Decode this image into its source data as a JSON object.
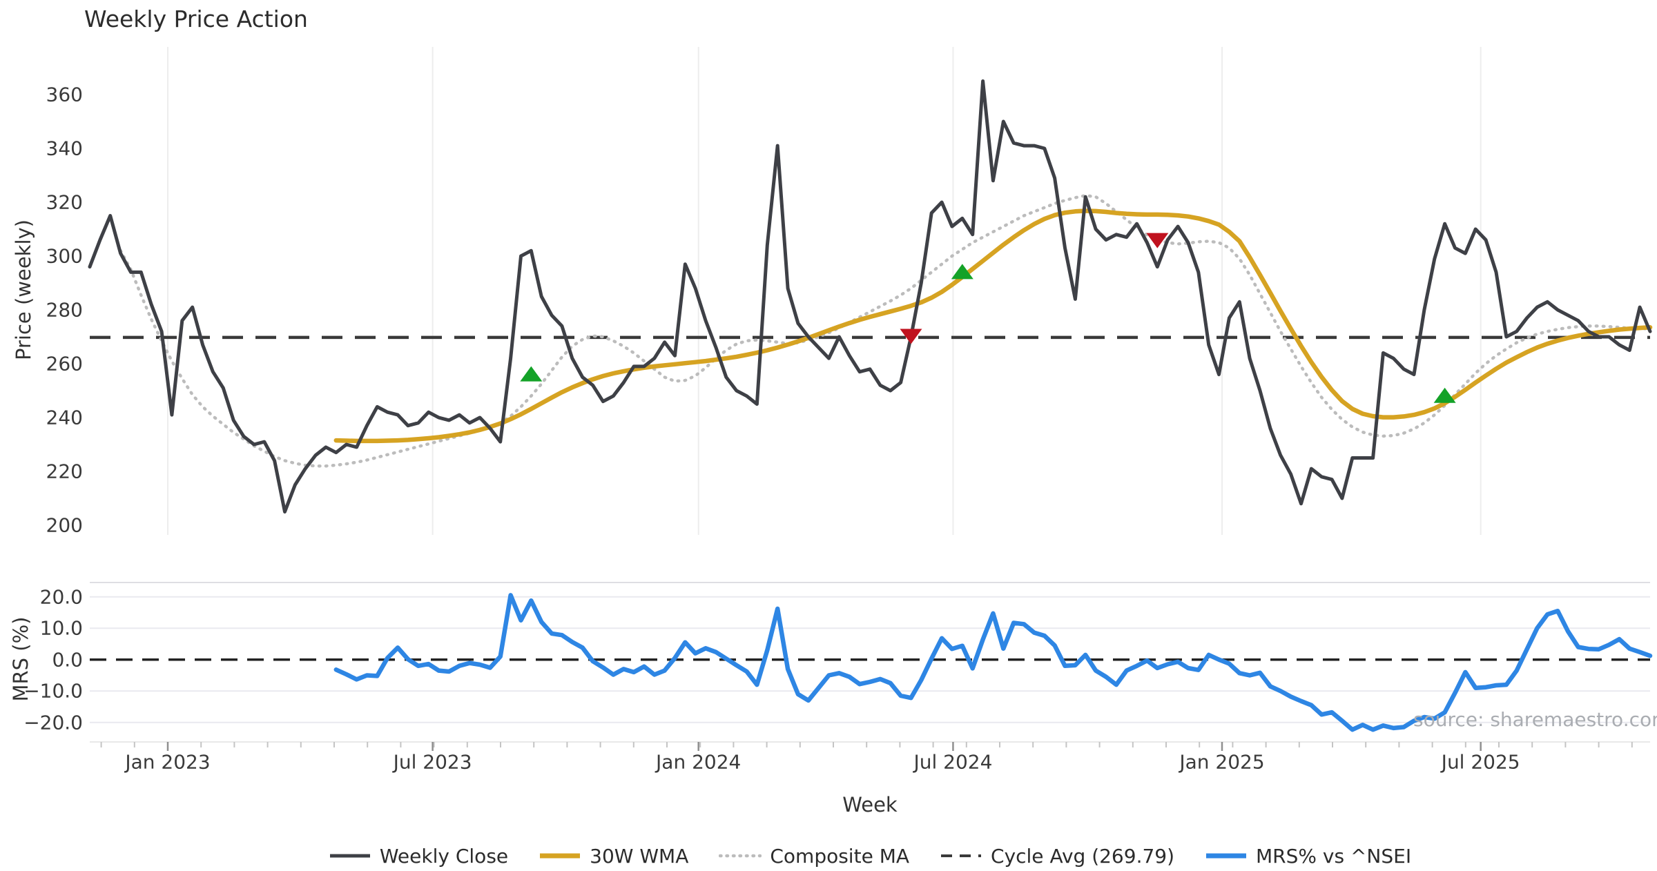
{
  "title": "Weekly Price Action",
  "source_note": "source: sharemaestro.com",
  "colors": {
    "weekly_close": "#3e4046",
    "wma_30w": "#d6a322",
    "composite_ma": "#bcbcbc",
    "cycle_avg": "#3a3a3a",
    "mrs": "#2e86e4",
    "buy_marker": "#14a228",
    "sell_marker": "#c0121f",
    "grid": "#ededed",
    "grid_h": "#e9e9ef"
  },
  "legend": [
    {
      "label": "Weekly Close",
      "style": "solid",
      "color": "#3e4046",
      "width": 5
    },
    {
      "label": "30W WMA",
      "style": "solid",
      "color": "#d6a322",
      "width": 7
    },
    {
      "label": "Composite MA",
      "style": "dotted",
      "color": "#bcbcbc",
      "width": 4.5
    },
    {
      "label": "Cycle Avg (269.79)",
      "style": "dashed",
      "color": "#3a3a3a",
      "width": 4
    },
    {
      "label": "MRS% vs ^NSEI",
      "style": "solid",
      "color": "#2e86e4",
      "width": 7
    }
  ],
  "chart_data": [
    {
      "type": "line",
      "title": "Weekly Price Action",
      "ylabel": "Price (weekly)",
      "ylim": [
        196,
        378
      ],
      "yticks": [
        360,
        340,
        320,
        300,
        280,
        260,
        240,
        220,
        200
      ],
      "x_unit": "week_index",
      "total_weeks": 152,
      "xticks": [
        {
          "label": "Jan 2023",
          "week": 7.6
        },
        {
          "label": "Jul 2023",
          "week": 33.4
        },
        {
          "label": "Jan 2024",
          "week": 59.3
        },
        {
          "label": "Jul 2024",
          "week": 84.1
        },
        {
          "label": "Jan 2025",
          "week": 110.3
        },
        {
          "label": "Jul 2025",
          "week": 135.5
        }
      ],
      "cycle_avg": 269.79,
      "grid": "vertical",
      "series": [
        {
          "name": "Weekly Close",
          "start_week": 0,
          "values": [
            296,
            306,
            315,
            301,
            294,
            294,
            282,
            272,
            241,
            276,
            281,
            267,
            257,
            251,
            239,
            233,
            230,
            231,
            224,
            205,
            215,
            221,
            226,
            229,
            227,
            230,
            229,
            237,
            244,
            242,
            241,
            237,
            238,
            242,
            240,
            239,
            241,
            238,
            240,
            236,
            231,
            262,
            300,
            302,
            285,
            278,
            274,
            262,
            255,
            252,
            246,
            248,
            253,
            259,
            259,
            262,
            268,
            263,
            297,
            288,
            276,
            266,
            255,
            250,
            248,
            245,
            304,
            341,
            288,
            275,
            270,
            266,
            262,
            270,
            263,
            257,
            258,
            252,
            250,
            253,
            270,
            290,
            316,
            320,
            311,
            314,
            308,
            365,
            328,
            350,
            342,
            341,
            341,
            340,
            329,
            303,
            284,
            322,
            310,
            306,
            308,
            307,
            312,
            305,
            296,
            306,
            311,
            305,
            294,
            267,
            256,
            277,
            283,
            262,
            250,
            236,
            226,
            219,
            208,
            221,
            218,
            217,
            210,
            225,
            225,
            225,
            264,
            262,
            258,
            256,
            280,
            299,
            312,
            303,
            301,
            310,
            306,
            294,
            270,
            272,
            277,
            281,
            283,
            280,
            278,
            276,
            272,
            270,
            270,
            267,
            265,
            281,
            272
          ]
        },
        {
          "name": "30W WMA",
          "start_week": 24,
          "values": [
            231.5,
            231.4,
            231.3,
            231.3,
            231.3,
            231.4,
            231.5,
            231.7,
            232,
            232.3,
            232.7,
            233.2,
            233.8,
            234.5,
            235.4,
            236.5,
            237.8,
            239.4,
            241.2,
            243.2,
            245.3,
            247.4,
            249.4,
            251.2,
            252.8,
            254.2,
            255.4,
            256.4,
            257.2,
            257.9,
            258.5,
            259,
            259.4,
            259.8,
            260.2,
            260.6,
            261,
            261.5,
            262,
            262.6,
            263.3,
            264.1,
            265,
            266,
            267.1,
            268.3,
            269.6,
            271,
            272.4,
            273.8,
            275.1,
            276.3,
            277.4,
            278.4,
            279.4,
            280.4,
            281.5,
            282.8,
            284.5,
            286.7,
            289.3,
            292.2,
            295.2,
            298.2,
            301.2,
            304.2,
            307,
            309.6,
            311.9,
            313.8,
            315.2,
            316.1,
            316.6,
            316.8,
            316.7,
            316.4,
            316,
            315.7,
            315.5,
            315.4,
            315.4,
            315.3,
            315.1,
            314.7,
            314,
            313,
            311.7,
            309,
            305.5,
            299.5,
            293,
            286.3,
            279.6,
            273,
            266.6,
            260.6,
            255.1,
            250.2,
            246.1,
            243.2,
            241.4,
            240.5,
            240.1,
            240.1,
            240.4,
            241,
            242,
            243.4,
            245.3,
            247.7,
            250.3,
            253,
            255.6,
            258.1,
            260.4,
            262.4,
            264.3,
            266,
            267.4,
            268.6,
            269.6,
            270.4,
            271.1,
            271.7,
            272.2,
            272.7,
            273,
            273.3,
            273.5
          ]
        },
        {
          "name": "Composite MA",
          "start_week": 3,
          "values": [
            302,
            295,
            285.5,
            276.5,
            268.5,
            261,
            254.5,
            248.5,
            244,
            240.5,
            237.5,
            234.5,
            232,
            229.5,
            227.5,
            225.5,
            224,
            223,
            222.3,
            222,
            222,
            222.3,
            222.8,
            223.4,
            224.2,
            225.2,
            226.2,
            227.2,
            228.2,
            229.2,
            230.2,
            231.2,
            232.2,
            233.2,
            234.2,
            235.2,
            236.4,
            238,
            240.5,
            244,
            248,
            252.5,
            257.5,
            262.5,
            266.5,
            269,
            270.3,
            270,
            268.5,
            266.5,
            264,
            261,
            258,
            255,
            253.5,
            253.8,
            255.5,
            258.5,
            262,
            265,
            267.3,
            268.5,
            268.8,
            268.5,
            268,
            267.5,
            267.8,
            268.8,
            270,
            271.5,
            273.3,
            275.3,
            277.3,
            279.3,
            281.3,
            283.3,
            285.5,
            288,
            291,
            294,
            297,
            300,
            302.5,
            305,
            307,
            309,
            311,
            313,
            315,
            316.5,
            318,
            319.5,
            320.7,
            321.7,
            322.5,
            322,
            319.5,
            316.5,
            313.5,
            310.5,
            307.8,
            306,
            305,
            304.5,
            304.8,
            305.3,
            305.5,
            305,
            303,
            299,
            293,
            286,
            279,
            272,
            265.5,
            259,
            253,
            247.5,
            243,
            239.3,
            236.5,
            234.6,
            233.5,
            233.1,
            233.3,
            234.2,
            235.8,
            238,
            241,
            244.5,
            248.5,
            252.5,
            256.5,
            260,
            263,
            265.5,
            267.8,
            269.6,
            271,
            272,
            272.8,
            273.4,
            273.8,
            274,
            274,
            273.8,
            273.5,
            273.2,
            273,
            273
          ]
        }
      ],
      "markers": {
        "buy": [
          {
            "week": 43,
            "value": 256
          },
          {
            "week": 85,
            "value": 294
          },
          {
            "week": 132,
            "value": 248
          }
        ],
        "sell": [
          {
            "week": 80,
            "value": 270.4
          },
          {
            "week": 104,
            "value": 306
          }
        ]
      }
    },
    {
      "type": "line",
      "ylabel": "MRS (%)",
      "xlabel": "Week",
      "ylim": [
        -26,
        23.5
      ],
      "yticks": [
        {
          "value": 20,
          "label": "20.0"
        },
        {
          "value": 10,
          "label": "10.0"
        },
        {
          "value": 0,
          "label": "0.0"
        },
        {
          "value": -10,
          "label": "−10.0"
        },
        {
          "value": -20,
          "label": "−20.0"
        }
      ],
      "zero_line": 0,
      "grid": "horizontal",
      "series": [
        {
          "name": "MRS% vs ^NSEI",
          "start_week": 24,
          "values": [
            -3.2,
            -4.7,
            -6.3,
            -5,
            -5.2,
            0.5,
            3.8,
            0.1,
            -2,
            -1.4,
            -3.5,
            -3.8,
            -2,
            -1.1,
            -1.6,
            -2.6,
            1,
            20.5,
            12.5,
            18.8,
            12,
            8.3,
            7.8,
            5.6,
            3.8,
            -0.5,
            -2.5,
            -4.8,
            -3,
            -4,
            -2.2,
            -4.8,
            -3.5,
            0.5,
            5.5,
            2,
            3.6,
            2.4,
            0.3,
            -1.8,
            -3.8,
            -8,
            3,
            16.2,
            -3,
            -11,
            -13,
            -9,
            -5,
            -4.3,
            -5.5,
            -7.8,
            -7.1,
            -6.2,
            -7.5,
            -11.5,
            -12.2,
            -6.5,
            0.3,
            6.8,
            3.4,
            4.4,
            -2.8,
            6.4,
            14.7,
            3.5,
            11.7,
            11.3,
            8.6,
            7.6,
            4.5,
            -2,
            -1.8,
            1.5,
            -3.5,
            -5.5,
            -8,
            -3.5,
            -2,
            -0.3,
            -2.7,
            -1.5,
            -0.7,
            -2.7,
            -3.3,
            1.5,
            0,
            -1.3,
            -4.3,
            -5,
            -4.2,
            -8.5,
            -10,
            -11.8,
            -13.2,
            -14.5,
            -17.5,
            -16.8,
            -19.5,
            -22.3,
            -20.8,
            -22.3,
            -21,
            -21.8,
            -21.5,
            -19.5,
            -18.3,
            -18.8,
            -16.8,
            -10.6,
            -4,
            -9,
            -8.8,
            -8.2,
            -8,
            -3.5,
            3.3,
            10,
            14.4,
            15.5,
            9,
            4,
            3.4,
            3.3,
            4.7,
            6.5,
            3.5,
            2.4,
            1.2
          ]
        }
      ]
    }
  ]
}
